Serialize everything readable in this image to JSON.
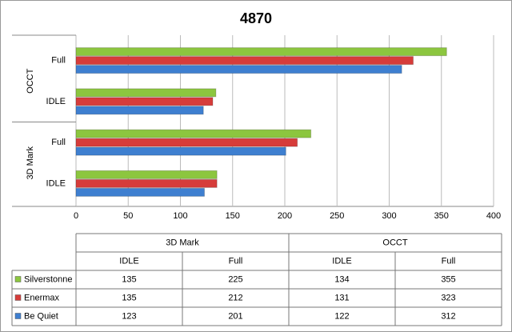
{
  "chart_data": {
    "type": "bar",
    "title": "4870",
    "groups": [
      "3D Mark",
      "OCCT"
    ],
    "categories": [
      "IDLE",
      "Full",
      "IDLE",
      "Full"
    ],
    "series": [
      {
        "name": "Silverstonne",
        "color": "#8cc63f",
        "values": [
          135,
          225,
          134,
          355
        ]
      },
      {
        "name": "Enermax",
        "color": "#d63c3a",
        "values": [
          135,
          212,
          131,
          323
        ]
      },
      {
        "name": "Be Quiet",
        "color": "#3e7fd0",
        "values": [
          123,
          201,
          122,
          312
        ]
      }
    ],
    "xlim": [
      0,
      400
    ],
    "xticks": [
      0,
      50,
      100,
      150,
      200,
      250,
      300,
      350,
      400
    ],
    "grid": true
  }
}
